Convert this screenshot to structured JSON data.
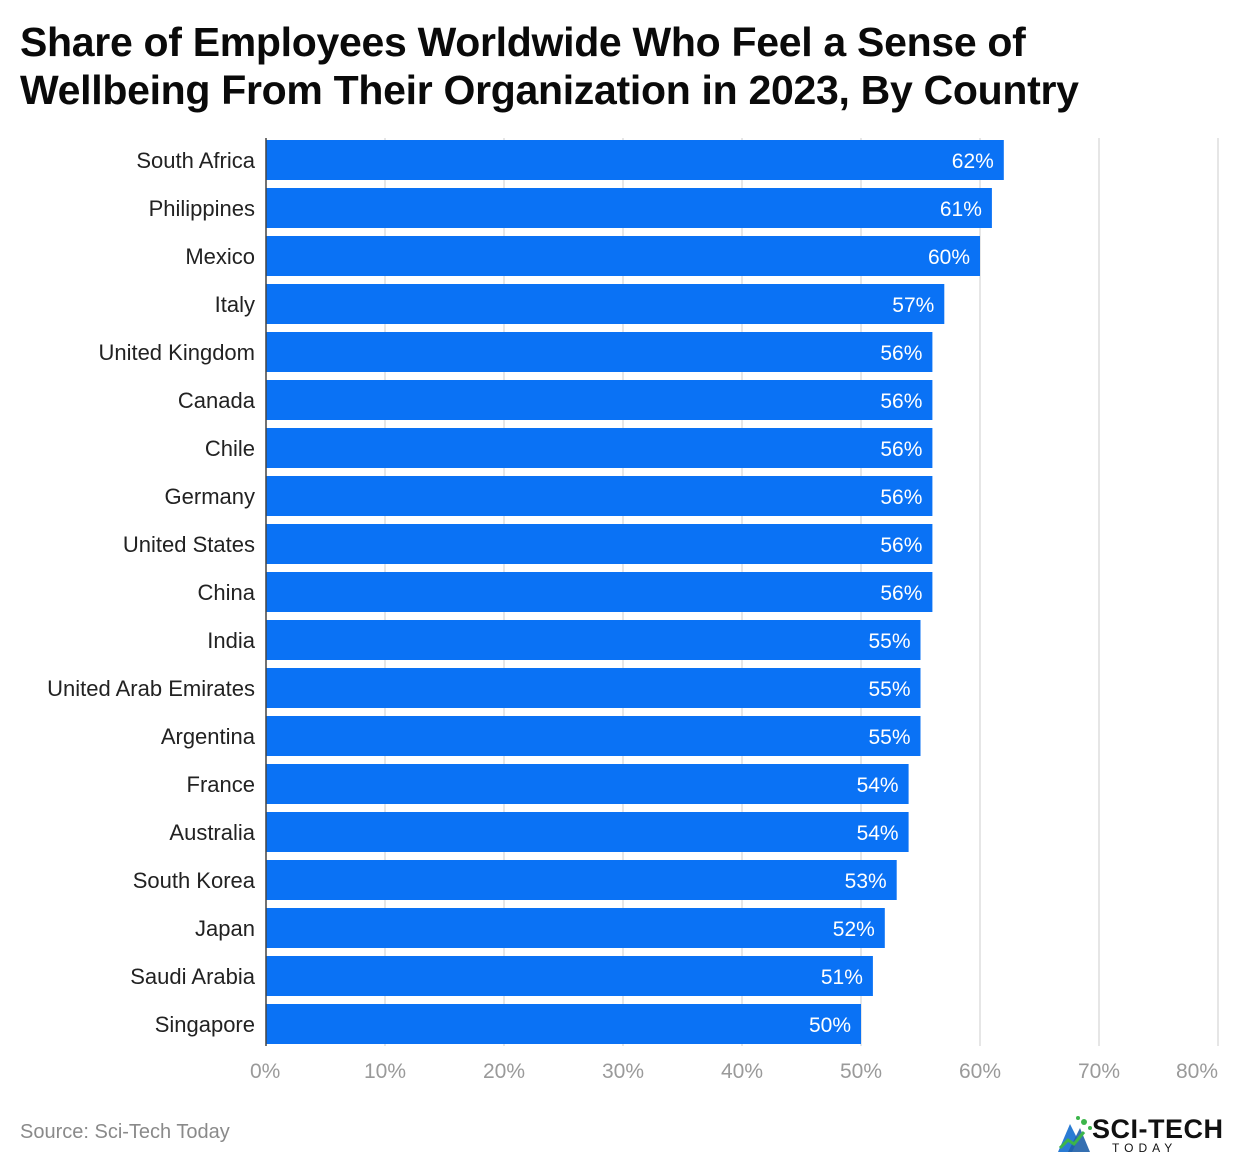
{
  "chart_data": {
    "type": "bar",
    "orientation": "horizontal",
    "title": "Share of Employees Worldwide Who Feel a Sense of Wellbeing From Their Organization in 2023, By Country",
    "categories": [
      "South Africa",
      "Philippines",
      "Mexico",
      "Italy",
      "United Kingdom",
      "Canada",
      "Chile",
      "Germany",
      "United States",
      "China",
      "India",
      "United Arab Emirates",
      "Argentina",
      "France",
      "Australia",
      "South Korea",
      "Japan",
      "Saudi Arabia",
      "Singapore"
    ],
    "values": [
      62,
      61,
      60,
      57,
      56,
      56,
      56,
      56,
      56,
      56,
      55,
      55,
      55,
      54,
      54,
      53,
      52,
      51,
      50
    ],
    "value_labels": [
      "62%",
      "61%",
      "60%",
      "57%",
      "56%",
      "56%",
      "56%",
      "56%",
      "56%",
      "56%",
      "55%",
      "55%",
      "55%",
      "54%",
      "54%",
      "53%",
      "52%",
      "51%",
      "50%"
    ],
    "x_ticks": [
      0,
      10,
      20,
      30,
      40,
      50,
      60,
      70,
      80
    ],
    "x_tick_labels": [
      "0%",
      "10%",
      "20%",
      "30%",
      "40%",
      "50%",
      "60%",
      "70%",
      "80%"
    ],
    "xlim": [
      0,
      80
    ],
    "grid": true,
    "bar_color": "#0a72f5",
    "xlabel": "",
    "ylabel": ""
  },
  "source": "Source: Sci-Tech Today",
  "logo": {
    "name": "SCI-TECH",
    "subtitle": "TODAY",
    "icon": "sci-tech-logo-icon",
    "colors": {
      "green": "#3cb54a",
      "blue": "#2a7bd4"
    }
  }
}
